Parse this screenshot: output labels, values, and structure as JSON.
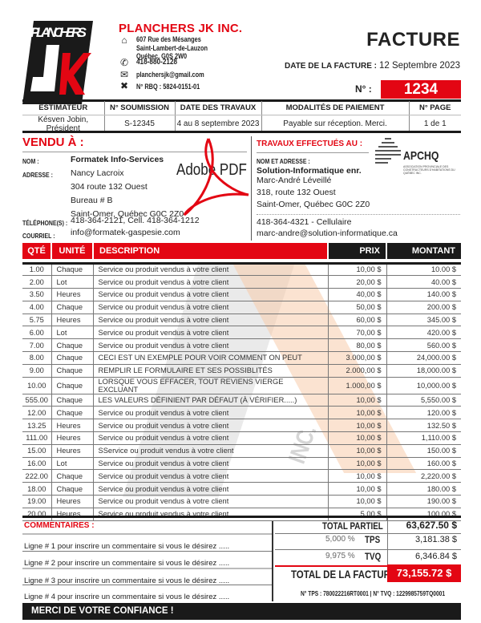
{
  "company": {
    "logo_text": "PLANCHERS JK INC.",
    "name": "PLANCHERS JK INC.",
    "address": [
      "607 Rue des Mésanges",
      "Saint-Lambert-de-Lauzon",
      "Québec, G0S 2W0"
    ],
    "phone": "418-880-2128",
    "email": "planchersjk@gmail.com",
    "rbq": "N° RBQ : 5824-0151-01",
    "icons": [
      "home-icon",
      "phone-icon",
      "envelope-icon",
      "tools-icon"
    ]
  },
  "doc": {
    "title": "FACTURE",
    "date_label": "DATE DE LA FACTURE :",
    "date": "12 Septembre 2023",
    "no_label": "N° :",
    "number": "1234"
  },
  "info": {
    "headers": [
      "ESTIMATEUR",
      "N° SOUMISSION",
      "DATE DES TRAVAUX",
      "MODALITÉS DE PAIEMENT",
      "N° PAGE"
    ],
    "values": [
      "Késven Jobin, Président",
      "S-12345",
      "4 au 8 septembre 2023",
      "Payable sur réception. Merci.",
      "1 de 1"
    ]
  },
  "sold_to": {
    "title": "VENDU À :",
    "name_label": "NOM :",
    "name": "Formatek Info-Services",
    "address_label": "ADRESSE :",
    "address": [
      "Nancy Lacroix",
      "304 route 132 Ouest",
      "Bureau # B",
      "Saint-Omer, Québec  G0C 2Z0"
    ],
    "phone_label": "TÉLÉPHONE(S) :",
    "phone": "418-364-2121, Cell. 418-364-1212",
    "email_label": "COURRIEL :",
    "email": "info@formatek-gaspesie.com"
  },
  "work_at": {
    "title": "TRAVAUX EFFECTUÉS AU :",
    "label": "NOM ET ADRESSE :",
    "name": "Solution-Informatique enr.",
    "lines": [
      "Marc-André Léveillé",
      "318, route 132 Ouest",
      "Saint-Omer, Québec  G0C 2Z0"
    ],
    "phone": "418-364-4321 - Cellulaire",
    "email": "marc-andre@solution-informatique.ca"
  },
  "watermark": {
    "adobe": "Adobe PDF",
    "apchq": "APCHQ",
    "apchq_sub": "ASSOCIATION PROVINCIALE DES CONSTRUCTEURS D'HABITATIONS DU QUÉBEC INC."
  },
  "items": {
    "headers": [
      "QTÉ",
      "UNITÉ",
      "DESCRIPTION",
      "PRIX",
      "MONTANT"
    ],
    "rows": [
      [
        "1.00",
        "Chaque",
        "Service ou produit vendus à votre client",
        "10,00 $",
        "10.00 $"
      ],
      [
        "2.00",
        "Lot",
        "Service ou produit vendus à votre client",
        "20,00 $",
        "40.00 $"
      ],
      [
        "3.50",
        "Heures",
        "Service ou produit vendus à votre client",
        "40,00 $",
        "140.00 $"
      ],
      [
        "4.00",
        "Chaque",
        "Service ou produit vendus à votre client",
        "50,00 $",
        "200.00 $"
      ],
      [
        "5.75",
        "Heures",
        "Service ou produit vendus à votre client",
        "60,00 $",
        "345.00 $"
      ],
      [
        "6.00",
        "Lot",
        "Service ou produit vendus à votre client",
        "70,00 $",
        "420.00 $"
      ],
      [
        "7.00",
        "Chaque",
        "Service ou produit vendus à votre client",
        "80,00 $",
        "560.00 $"
      ],
      [
        "8.00",
        "Chaque",
        "CECI EST UN EXEMPLE POUR VOIR COMMENT ON PEUT",
        "3.000,00 $",
        "24,000.00 $"
      ],
      [
        "9.00",
        "Chaque",
        "REMPLIR LE FORMULAIRE ET SES POSSIBLITÉS",
        "2.000,00 $",
        "18,000.00 $"
      ],
      [
        "10.00",
        "Chaque",
        "LORSQUE VOUS EFFACER, TOUT REVIENS VIERGE EXCLUANT",
        "1.000,00 $",
        "10,000.00 $"
      ],
      [
        "555.00",
        "Chaque",
        "LES VALEURS DÉFINIENT PAR DÉFAUT (À VÉRIFIER.....)",
        "10,00 $",
        "5,550.00 $"
      ],
      [
        "12.00",
        "Chaque",
        "Service ou produit vendus à votre client",
        "10,00 $",
        "120.00 $"
      ],
      [
        "13.25",
        "Heures",
        "Service ou produit vendus à votre client",
        "10,00 $",
        "132.50 $"
      ],
      [
        "111.00",
        "Heures",
        "Service ou produit vendus à votre client",
        "10,00 $",
        "1,110.00 $"
      ],
      [
        "15.00",
        "Heures",
        "SService ou produit vendus à votre client",
        "10,00 $",
        "150.00 $"
      ],
      [
        "16.00",
        "Lot",
        "Service ou produit vendus à votre client",
        "10,00 $",
        "160.00 $"
      ],
      [
        "222.00",
        "Chaque",
        "Service ou produit vendus à votre client",
        "10,00 $",
        "2,220.00 $"
      ],
      [
        "18.00",
        "Chaque",
        "Service ou produit vendus à votre client",
        "10,00 $",
        "180.00 $"
      ],
      [
        "19.00",
        "Heures",
        "Service ou produit vendus à votre client",
        "10,00 $",
        "190.00 $"
      ],
      [
        "20.00",
        "Heures",
        "Service ou produit vendus à votre client",
        "5,00 $",
        "100.00 $"
      ]
    ]
  },
  "comments": {
    "title": "COMMENTAIRES :",
    "lines": [
      "Ligne # 1 pour inscrire un commentaire si vous le désirez .....",
      "Ligne # 2 pour inscrire un commentaire si vous le désirez .....",
      "Ligne # 3 pour inscrire un commentaire si vous le désirez .....",
      "Ligne # 4 pour inscrire un commentaire si vous le désirez ....."
    ]
  },
  "totals": {
    "subtotal_label": "TOTAL PARTIEL",
    "subtotal": "63,627.50 $",
    "tps_rate": "5,000 %",
    "tps_label": "TPS",
    "tps": "3,181.38 $",
    "tvq_rate": "9,975 %",
    "tvq_label": "TVQ",
    "tvq": "6,346.84 $",
    "total_label": "TOTAL DE LA FACTURE",
    "total": "73,155.72 $",
    "tax_numbers": "N° TPS : 780022216RT0001 | N° TVQ : 1229985759TQ0001"
  },
  "footer": "MERCI DE VOTRE CONFIANCE !",
  "colors": {
    "accent": "#e30613",
    "dark": "#1a1a1a"
  }
}
